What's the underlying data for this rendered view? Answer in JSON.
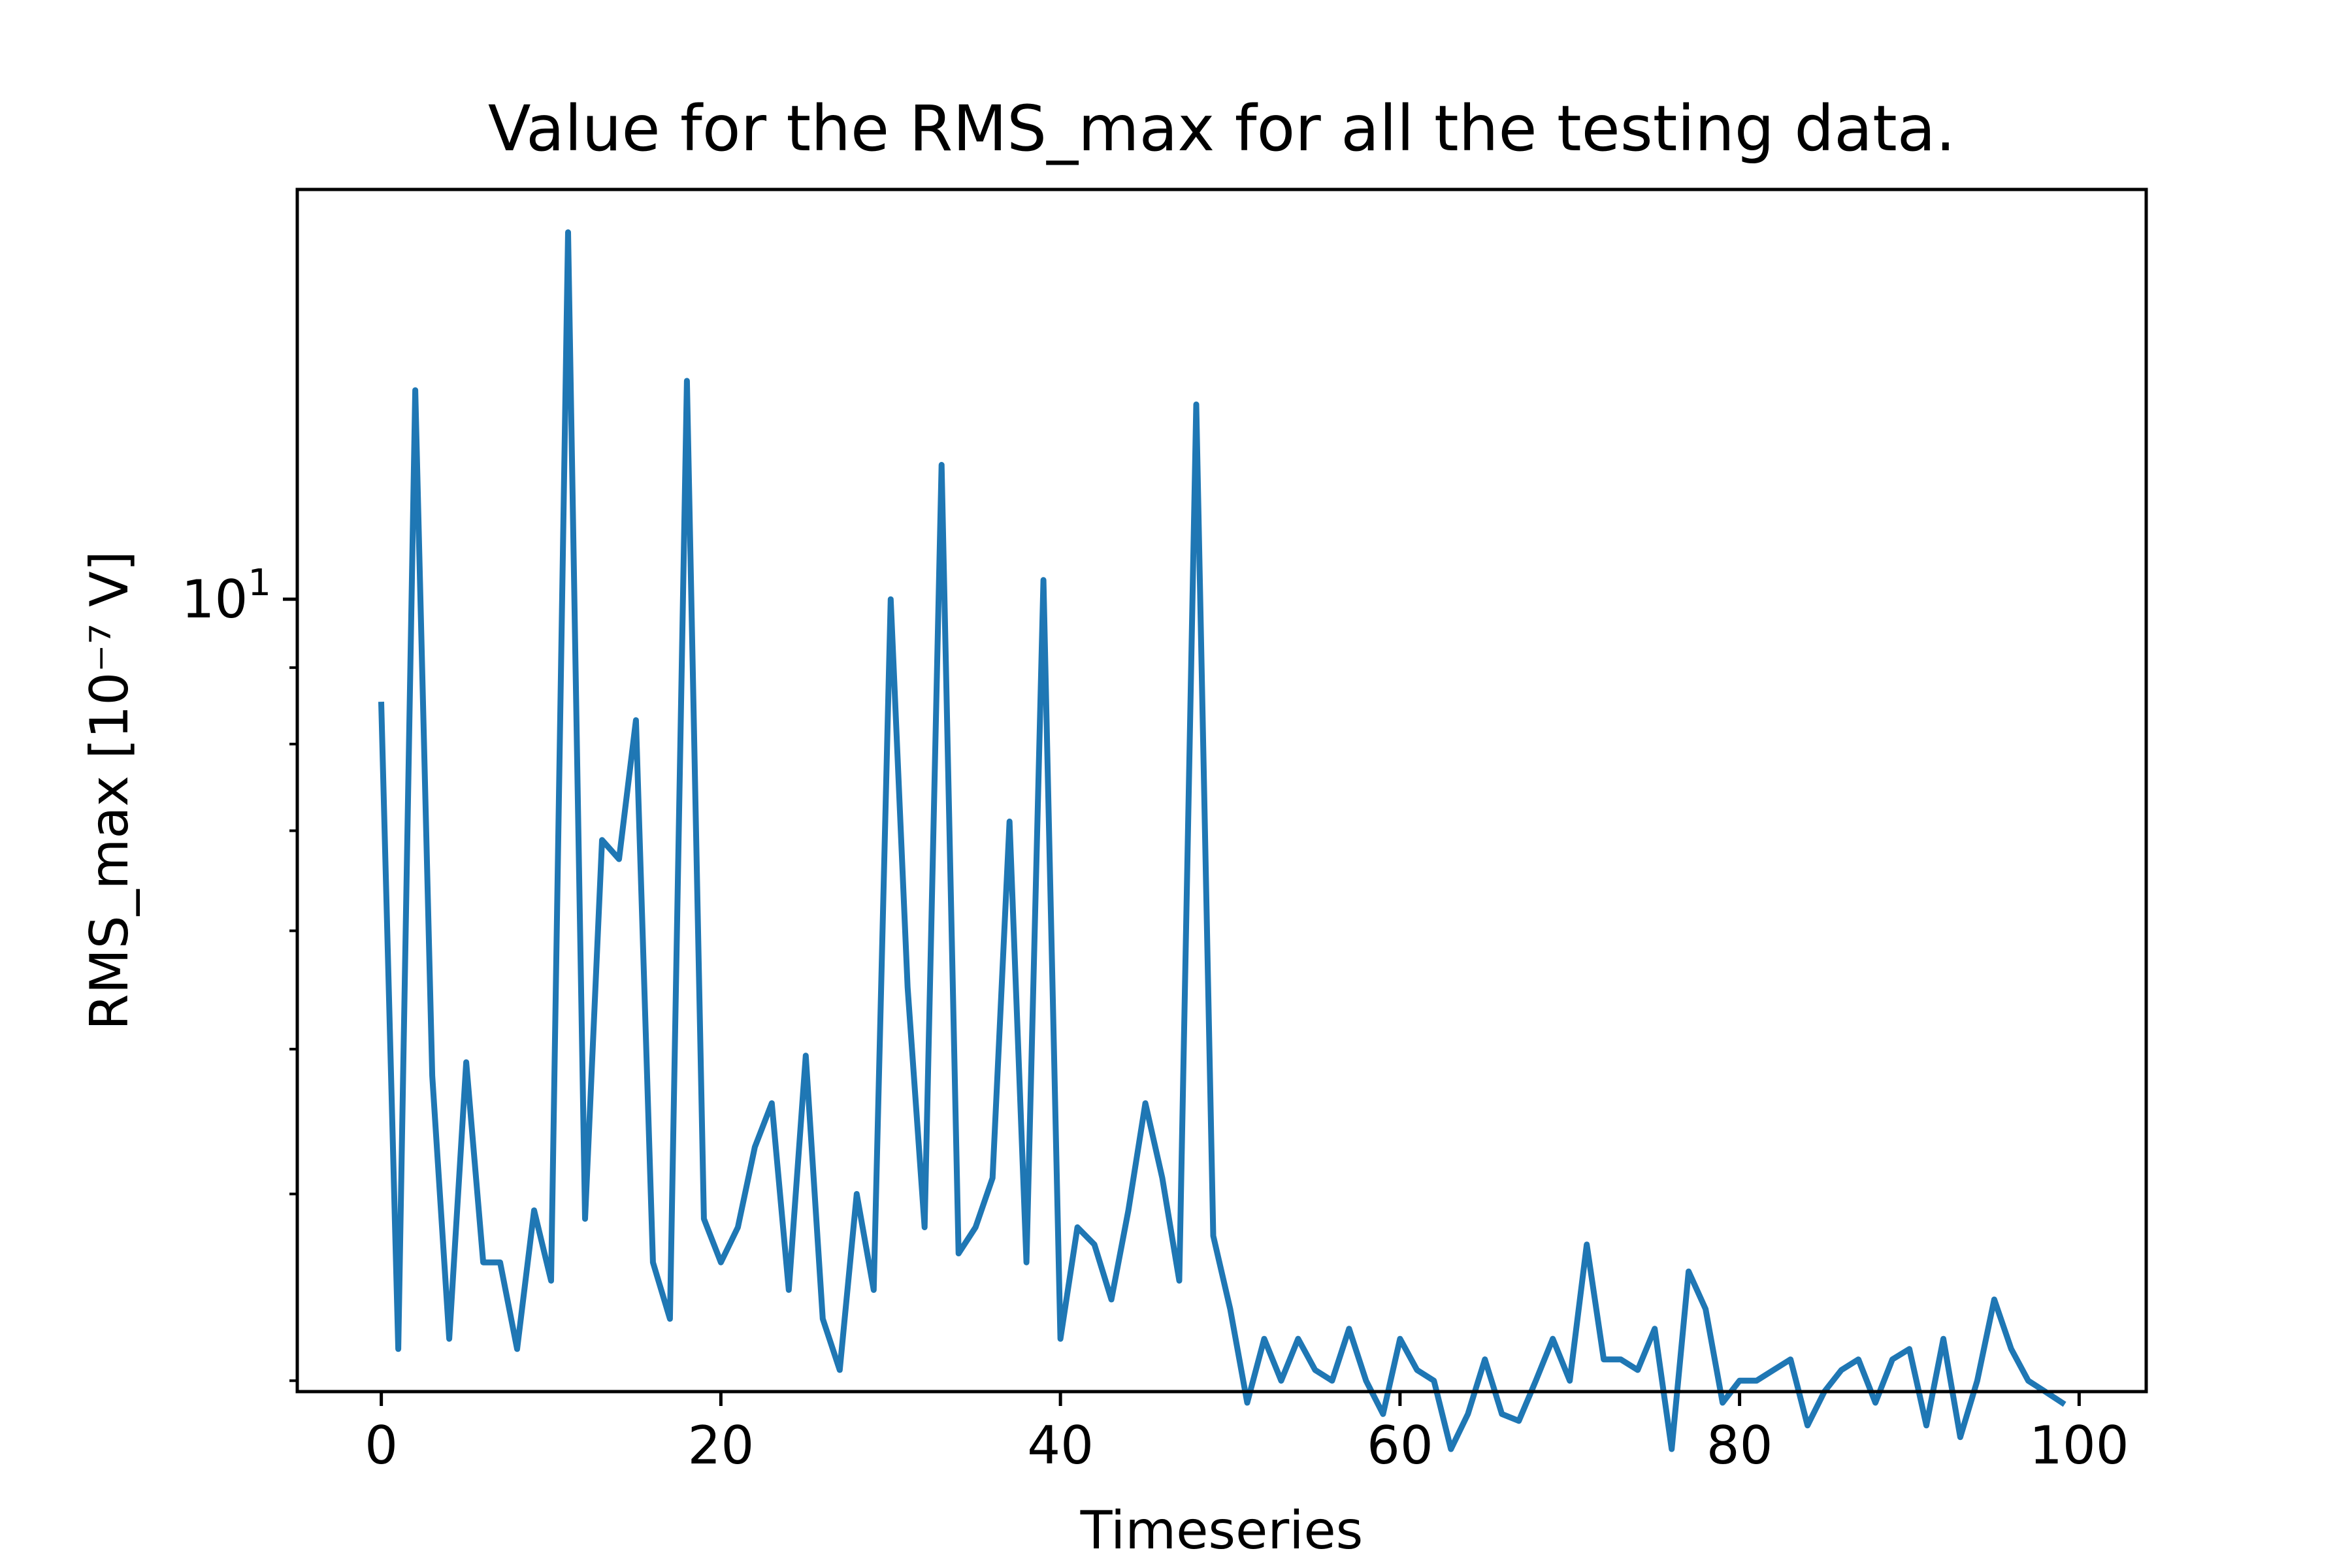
{
  "chart_data": {
    "type": "line",
    "title": "Value for the RMS_max for all the testing data.",
    "xlabel": "Timeseries",
    "ylabel": "RMS_max [10⁻⁷ V]",
    "xlim": [
      -4.95,
      103.95
    ],
    "ylim": [
      2.95,
      18.8
    ],
    "yscale": "log",
    "grid": false,
    "x_ticks": [
      {
        "value": 0,
        "label": "0"
      },
      {
        "value": 20,
        "label": "20"
      },
      {
        "value": 40,
        "label": "40"
      },
      {
        "value": 60,
        "label": "60"
      },
      {
        "value": 80,
        "label": "80"
      },
      {
        "value": 100,
        "label": "100"
      }
    ],
    "y_major_ticks": [
      {
        "value": 10,
        "label_base": "10",
        "label_exp": "1"
      }
    ],
    "y_minor_ticks": [
      3,
      4,
      5,
      6,
      7,
      8,
      9,
      20
    ],
    "series": [
      {
        "name": "",
        "color": "#1f77b4",
        "x": [
          0,
          1,
          2,
          3,
          4,
          5,
          6,
          7,
          8,
          9,
          10,
          11,
          12,
          13,
          14,
          15,
          16,
          17,
          18,
          19,
          20,
          21,
          22,
          23,
          24,
          25,
          26,
          27,
          28,
          29,
          30,
          31,
          32,
          33,
          34,
          35,
          36,
          37,
          38,
          39,
          40,
          41,
          42,
          43,
          44,
          45,
          46,
          47,
          48,
          49,
          50,
          51,
          52,
          53,
          54,
          55,
          56,
          57,
          58,
          59,
          60,
          61,
          62,
          63,
          64,
          65,
          66,
          67,
          68,
          69,
          70,
          71,
          72,
          73,
          74,
          75,
          76,
          77,
          78,
          79,
          80,
          81,
          82,
          83,
          84,
          85,
          86,
          87,
          88,
          89,
          90,
          91,
          92,
          93,
          94,
          95,
          96,
          97,
          98,
          99
        ],
        "values": [
          8.5,
          3.15,
          13.8,
          4.8,
          3.2,
          4.9,
          3.6,
          3.6,
          3.15,
          3.9,
          3.5,
          17.6,
          3.85,
          6.9,
          6.7,
          8.3,
          3.6,
          3.3,
          14.0,
          3.85,
          3.6,
          3.8,
          4.3,
          4.6,
          3.45,
          4.95,
          3.3,
          3.05,
          4.0,
          3.45,
          10.0,
          5.5,
          3.8,
          12.3,
          3.65,
          3.8,
          4.1,
          7.1,
          3.6,
          10.3,
          3.2,
          3.8,
          3.7,
          3.4,
          3.9,
          4.6,
          4.1,
          3.5,
          13.5,
          3.75,
          3.35,
          2.9,
          3.2,
          3.0,
          3.2,
          3.05,
          3.0,
          3.25,
          3.0,
          2.85,
          3.2,
          3.05,
          3.0,
          2.7,
          2.85,
          3.1,
          2.85,
          2.82,
          3.0,
          3.2,
          3.0,
          3.7,
          3.1,
          3.1,
          3.05,
          3.25,
          2.7,
          3.55,
          3.35,
          2.9,
          3.0,
          3.0,
          3.05,
          3.1,
          2.8,
          2.95,
          3.05,
          3.1,
          2.9,
          3.1,
          3.15,
          2.8,
          3.2,
          2.75,
          3.0,
          3.4,
          3.15,
          3.0,
          2.95,
          2.9
        ]
      }
    ]
  }
}
